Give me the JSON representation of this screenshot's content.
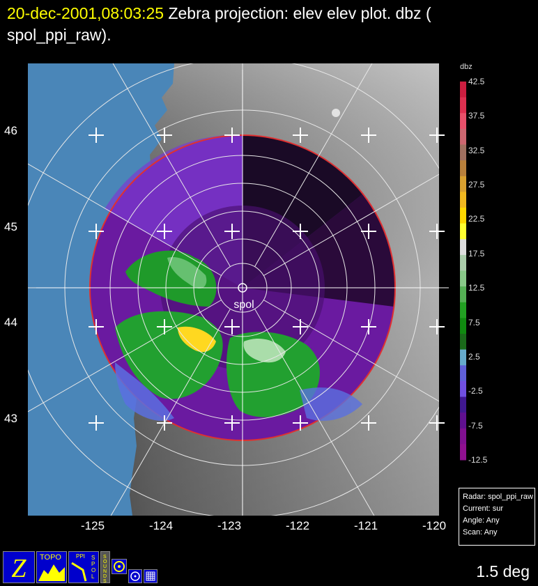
{
  "title": {
    "timestamp": "20-dec-2001,08:03:25",
    "line1_rest": "Zebra projection: elev elev  plot.  dbz (",
    "line2": "spol_ppi_raw)."
  },
  "radar_label": "spol",
  "lat_labels": [
    "46",
    "45",
    "44",
    "43"
  ],
  "lon_labels": [
    "-125",
    "-124",
    "-123",
    "-122",
    "-121",
    "-120"
  ],
  "colorbar": {
    "title": "dbz",
    "labels": [
      "42.5",
      "37.5",
      "32.5",
      "27.5",
      "22.5",
      "17.5",
      "12.5",
      "7.5",
      "2.5",
      "-2.5",
      "-7.5",
      "-12.5"
    ],
    "colors": [
      "#cc1e40",
      "#dd3050",
      "#e8506a",
      "#cc6670",
      "#a07060",
      "#b8803c",
      "#d8a030",
      "#f0b820",
      "#ffd800",
      "#ffff30",
      "#dddddd",
      "#aaccaa",
      "#88c888",
      "#55b055",
      "#22a022",
      "#108a10",
      "#1a6a1a",
      "#66aacc",
      "#6060d8",
      "#7050e0",
      "#401890",
      "#601090",
      "#801090",
      "#901090"
    ]
  },
  "info_box": {
    "radar": "Radar: spol_ppi_raw",
    "current": "Current: sur",
    "angle": "Angle: Any",
    "scan": "Scan: Any"
  },
  "elevation": "1.5 deg",
  "icons": {
    "topo": "TOPO",
    "ppi": "PPI",
    "spol": "SPOL",
    "sounds": "SOUNDS"
  },
  "colors": {
    "ocean": "#4a86b8",
    "radar_bg": "#6a1aa0",
    "title_ts": "#ffff00"
  }
}
